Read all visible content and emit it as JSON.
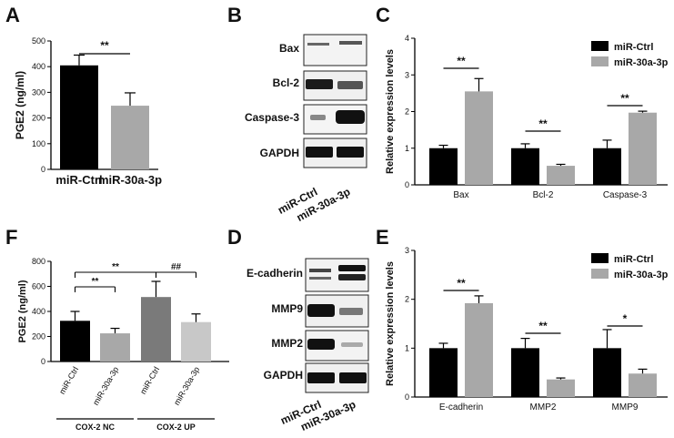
{
  "panels": {
    "A": "A",
    "B": "B",
    "C": "C",
    "D": "D",
    "E": "E",
    "F": "F"
  },
  "colors": {
    "ctrl": "#000000",
    "treat": "#a8a8a8",
    "cox_up_ctrl": "#7a7a7a",
    "cox_up_treat": "#c8c8c8"
  },
  "blot_B": {
    "rows": [
      "Bax",
      "Bcl-2",
      "Caspase-3",
      "GAPDH"
    ],
    "lanes": [
      "miR-Ctrl",
      "miR-30a-3p"
    ]
  },
  "blot_D": {
    "rows": [
      "E-cadherin",
      "MMP9",
      "MMP2",
      "GAPDH"
    ],
    "lanes": [
      "miR-Ctrl",
      "miR-30a-3p"
    ]
  },
  "chart_data": [
    {
      "id": "A",
      "type": "bar",
      "ylabel": "PGE2 (ng/ml)",
      "xlabel": "",
      "ylim": [
        0,
        500
      ],
      "yticks": [
        "0",
        "100",
        "200",
        "300",
        "400",
        "500"
      ],
      "categories": [
        "miR-Ctrl",
        "miR-30a-3p"
      ],
      "values": [
        405,
        248
      ],
      "errors": [
        40,
        50
      ],
      "significance": [
        {
          "from": 0,
          "to": 1,
          "label": "**"
        }
      ]
    },
    {
      "id": "C",
      "type": "bar",
      "ylabel": "Relative expression levels",
      "xlabel": "",
      "ylim": [
        0,
        4
      ],
      "yticks": [
        "0",
        "1",
        "2",
        "3",
        "4"
      ],
      "categories": [
        "Bax",
        "Bcl-2",
        "Caspase-3"
      ],
      "series": [
        {
          "name": "miR-Ctrl",
          "values": [
            1.0,
            1.0,
            1.0
          ],
          "errors": [
            0.08,
            0.12,
            0.22
          ]
        },
        {
          "name": "miR-30a-3p",
          "values": [
            2.55,
            0.52,
            1.97
          ],
          "errors": [
            0.35,
            0.04,
            0.04
          ]
        }
      ],
      "significance": [
        {
          "category": 0,
          "label": "**"
        },
        {
          "category": 1,
          "label": "**"
        },
        {
          "category": 2,
          "label": "**"
        }
      ]
    },
    {
      "id": "E",
      "type": "bar",
      "ylabel": "Relative expression levels",
      "xlabel": "",
      "ylim": [
        0,
        3
      ],
      "yticks": [
        "0",
        "1",
        "2",
        "3"
      ],
      "categories": [
        "E-cadherin",
        "MMP2",
        "MMP9"
      ],
      "series": [
        {
          "name": "miR-Ctrl",
          "values": [
            1.0,
            1.0,
            1.0
          ],
          "errors": [
            0.1,
            0.2,
            0.38
          ]
        },
        {
          "name": "miR-30a-3p",
          "values": [
            1.92,
            0.36,
            0.48
          ],
          "errors": [
            0.15,
            0.03,
            0.09
          ]
        }
      ],
      "significance": [
        {
          "category": 0,
          "label": "**"
        },
        {
          "category": 1,
          "label": "**"
        },
        {
          "category": 2,
          "label": "*"
        }
      ]
    },
    {
      "id": "F",
      "type": "bar",
      "ylabel": "PGE2 (ng/ml)",
      "xlabel": "",
      "ylim": [
        0,
        800
      ],
      "yticks": [
        "0",
        "200",
        "400",
        "600",
        "800"
      ],
      "categories": [
        "miR-Ctrl",
        "miR-30a-3p",
        "miR-Ctrl",
        "miR-30a-3p"
      ],
      "groups": [
        {
          "label": "COX-2 NC",
          "members": [
            0,
            1
          ]
        },
        {
          "label": "COX-2 UP",
          "members": [
            2,
            3
          ]
        }
      ],
      "values": [
        325,
        225,
        515,
        315
      ],
      "errors": [
        75,
        40,
        125,
        65
      ],
      "significance": [
        {
          "from": 0,
          "to": 1,
          "label": "**"
        },
        {
          "from": 0,
          "to": 2,
          "label": "**"
        },
        {
          "from": 2,
          "to": 3,
          "label": "##"
        }
      ]
    }
  ]
}
